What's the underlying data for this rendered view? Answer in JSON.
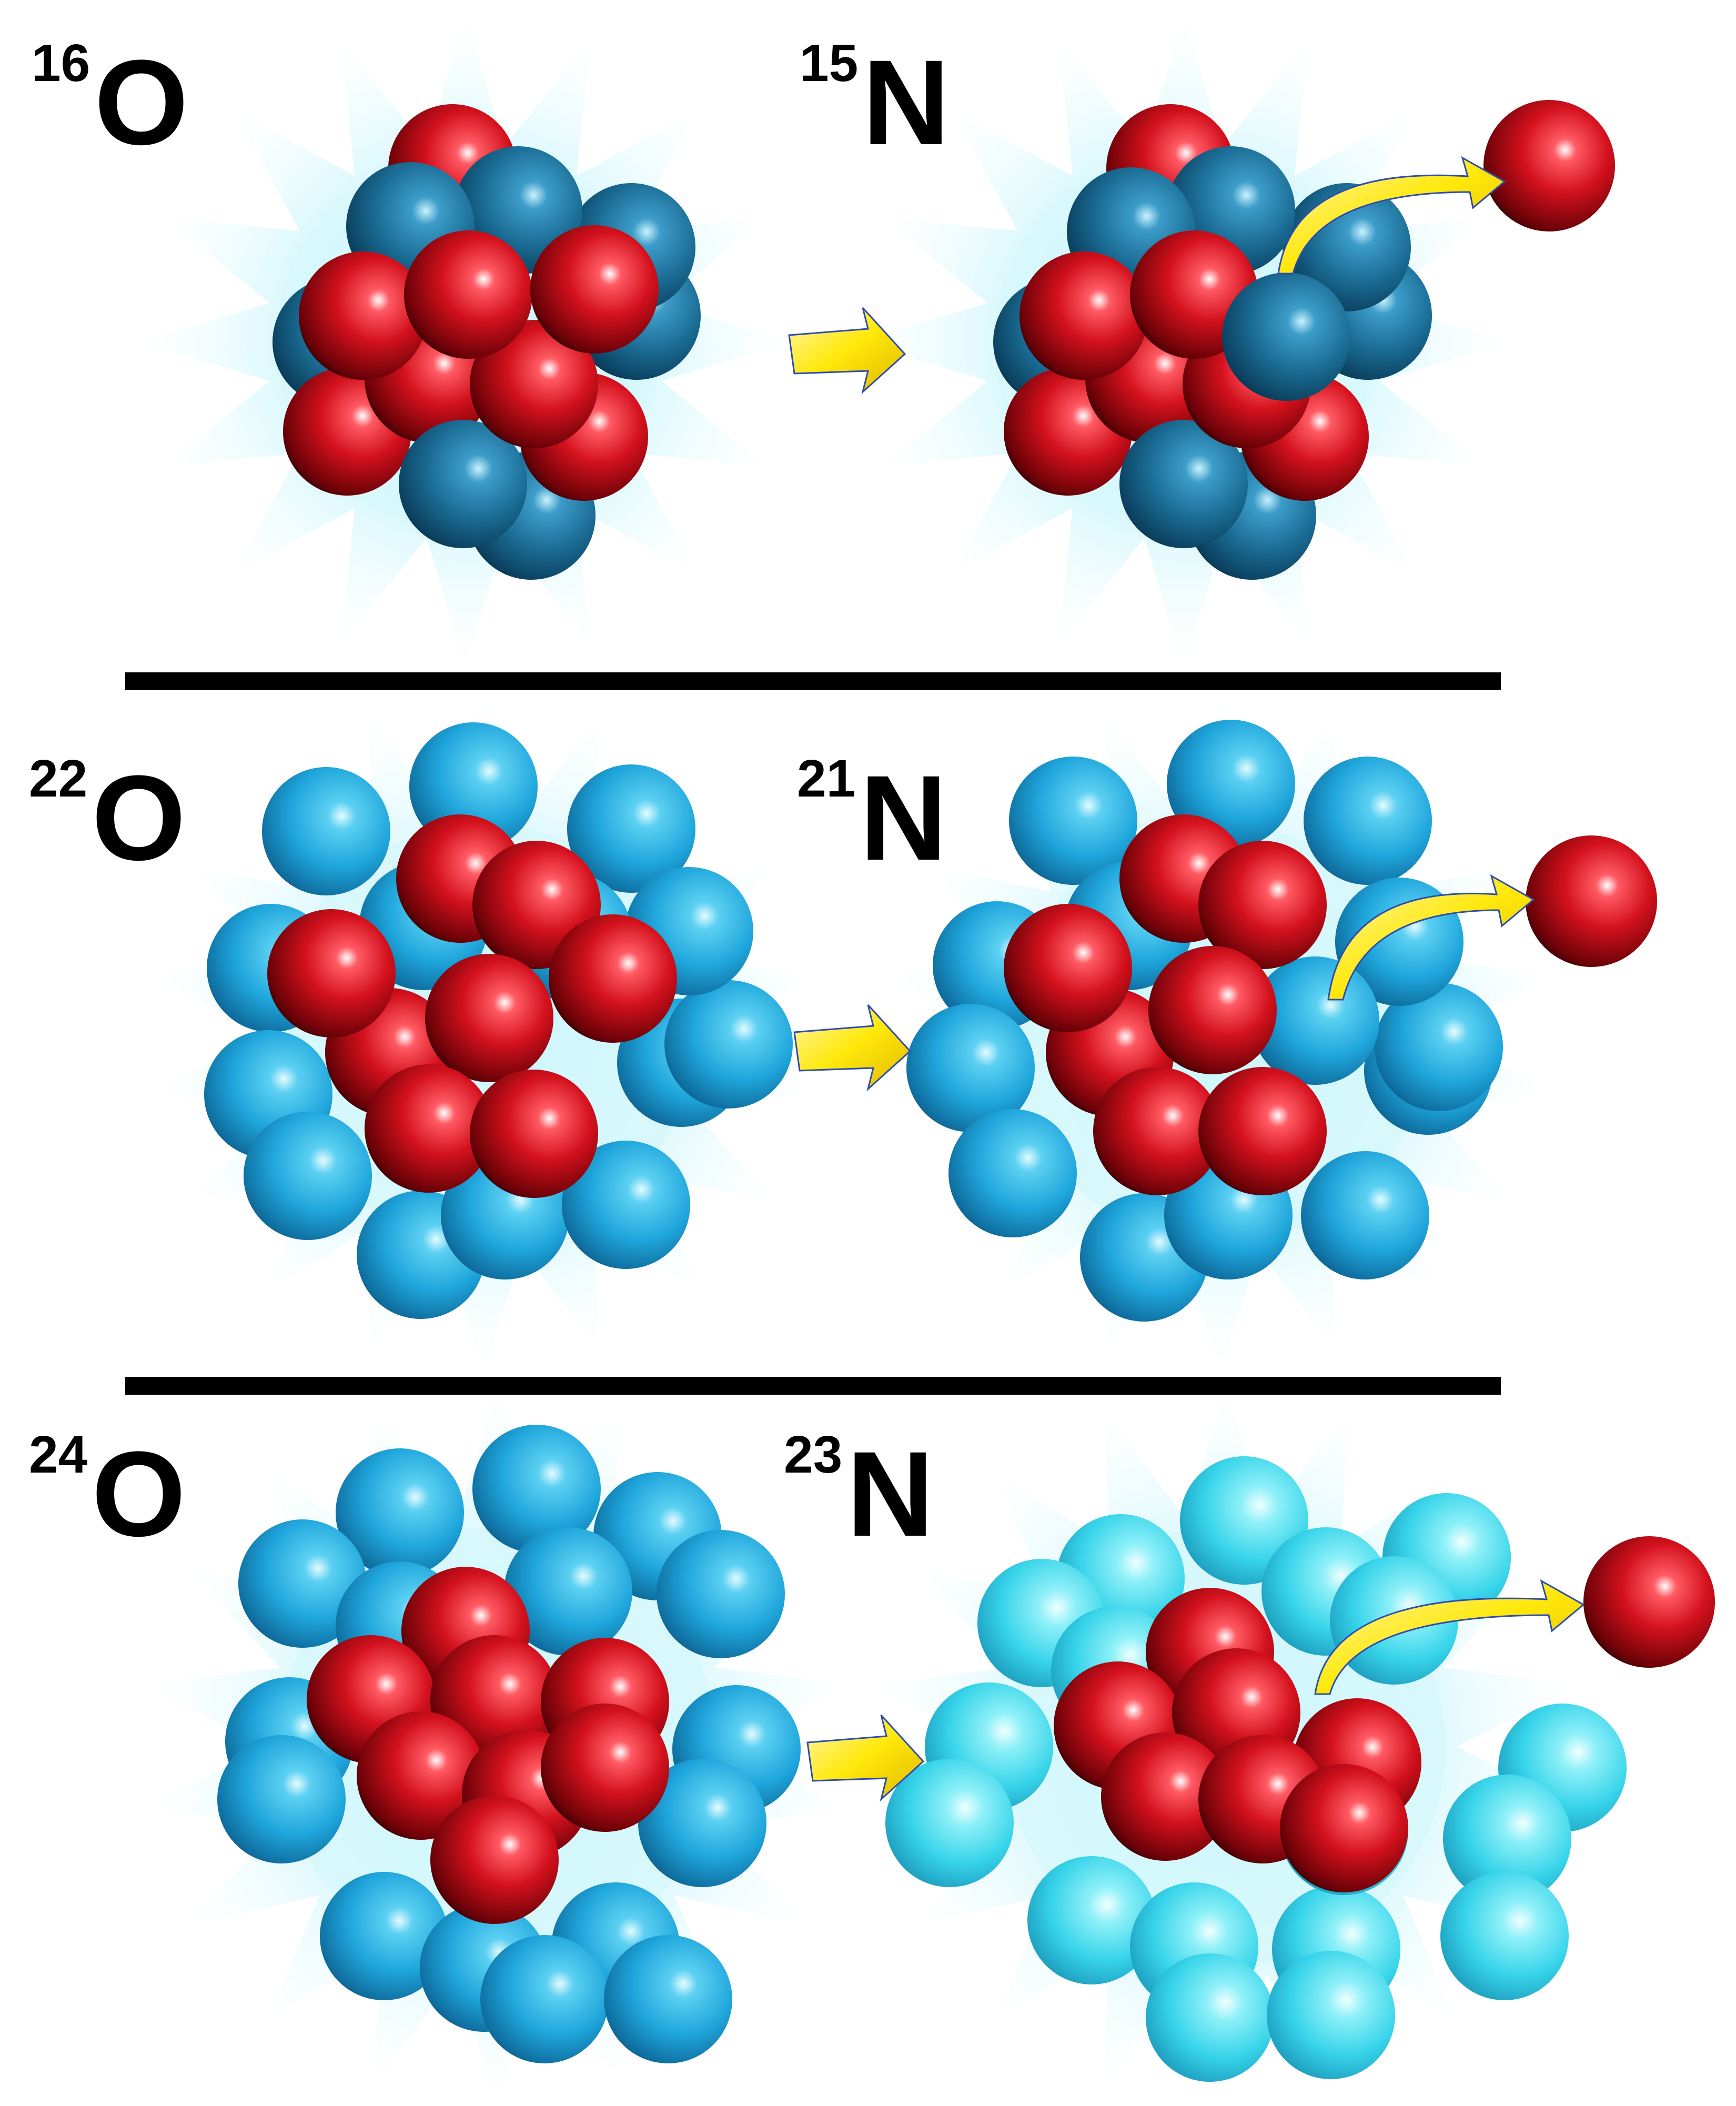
{
  "colors": {
    "proton": "#d3111d",
    "neutron_tight": "#1a6b93",
    "neutron_skin": "#1fa6dc",
    "neutron_halo": "#37d4ea",
    "glow": "#9be9f5",
    "arrow": "#ffe80a",
    "divider": "#000000"
  },
  "rows": [
    {
      "parent": {
        "mass_number": "16",
        "symbol": "O",
        "protons": 8,
        "neutrons": 8
      },
      "daughter": {
        "mass_number": "15",
        "symbol": "N",
        "protons": 7,
        "neutrons": 8
      },
      "removed_particle": "proton"
    },
    {
      "parent": {
        "mass_number": "22",
        "symbol": "O",
        "protons": 8,
        "neutrons": 14
      },
      "daughter": {
        "mass_number": "21",
        "symbol": "N",
        "protons": 7,
        "neutrons": 14
      },
      "removed_particle": "proton"
    },
    {
      "parent": {
        "mass_number": "24",
        "symbol": "O",
        "protons": 8,
        "neutrons": 16
      },
      "daughter": {
        "mass_number": "23",
        "symbol": "N",
        "protons": 7,
        "neutrons": 16
      },
      "removed_particle": "proton"
    }
  ]
}
